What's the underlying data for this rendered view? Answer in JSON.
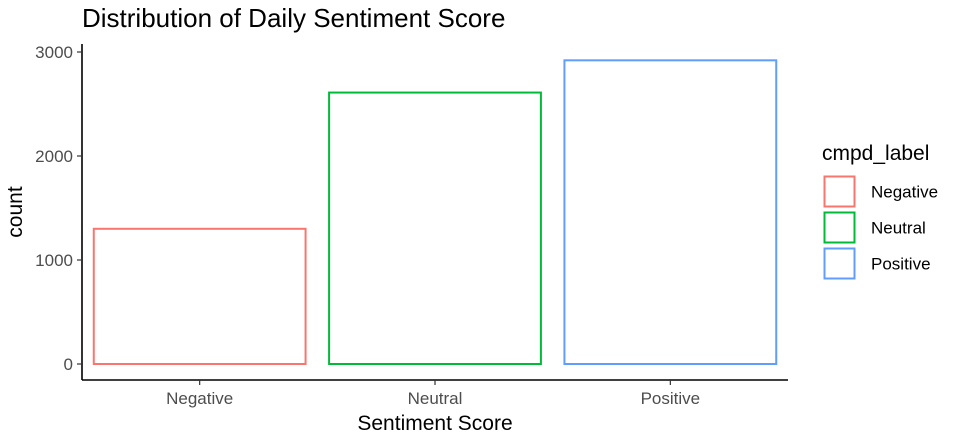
{
  "chart_data": {
    "type": "bar",
    "title": "Distribution of Daily Sentiment Score",
    "xlabel": "Sentiment Score",
    "ylabel": "count",
    "categories": [
      "Negative",
      "Neutral",
      "Positive"
    ],
    "values": [
      1300,
      2610,
      2920
    ],
    "colors": [
      "#F8766D",
      "#00BA38",
      "#619CFF"
    ],
    "fill": "none",
    "ylim": [
      0,
      3000
    ],
    "yticks": [
      0,
      1000,
      2000,
      3000
    ],
    "grid": false,
    "legend": {
      "title": "cmpd_label",
      "position": "right",
      "entries": [
        "Negative",
        "Neutral",
        "Positive"
      ]
    }
  }
}
